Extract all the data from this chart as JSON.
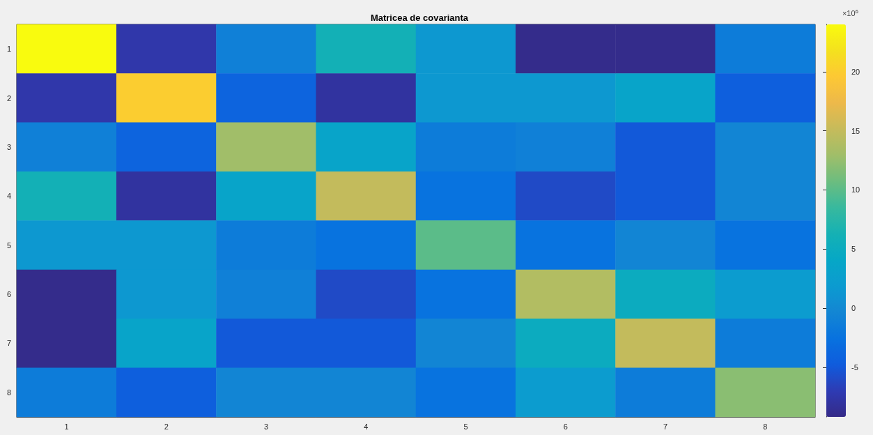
{
  "chart_data": {
    "type": "heatmap",
    "title": "Matricea de covarianta",
    "categories": [
      "1",
      "2",
      "3",
      "4",
      "5",
      "6",
      "7",
      "8"
    ],
    "y_categories": [
      "1",
      "2",
      "3",
      "4",
      "5",
      "6",
      "7",
      "8"
    ],
    "cells": [
      [
        24,
        -7.5,
        -1,
        6,
        1.5,
        -9,
        -9,
        -1.5
      ],
      [
        -7.5,
        20,
        -4,
        -8,
        1.5,
        1.5,
        3.5,
        -4.5
      ],
      [
        -1,
        -4,
        13,
        3.5,
        -1.5,
        -1,
        -5,
        -0.5
      ],
      [
        6,
        -8,
        3.5,
        15,
        -2.5,
        -6,
        -5,
        -0.5
      ],
      [
        1.5,
        1.5,
        -1.5,
        -2.5,
        10,
        -2.5,
        -0.5,
        -2.5
      ],
      [
        -9,
        1.5,
        -1,
        -6,
        -2.5,
        14,
        5,
        2
      ],
      [
        -9,
        3.5,
        -5,
        -5,
        -0.5,
        5,
        15,
        -1.5
      ],
      [
        -1.5,
        -4.5,
        -0.5,
        -0.5,
        -2.5,
        2,
        -1.5,
        12
      ]
    ],
    "clim": [
      -9.2,
      24
    ],
    "cticks": [
      -5,
      0,
      5,
      10,
      15,
      20
    ],
    "annotations": [
      "×10$^{6}$"
    ]
  }
}
